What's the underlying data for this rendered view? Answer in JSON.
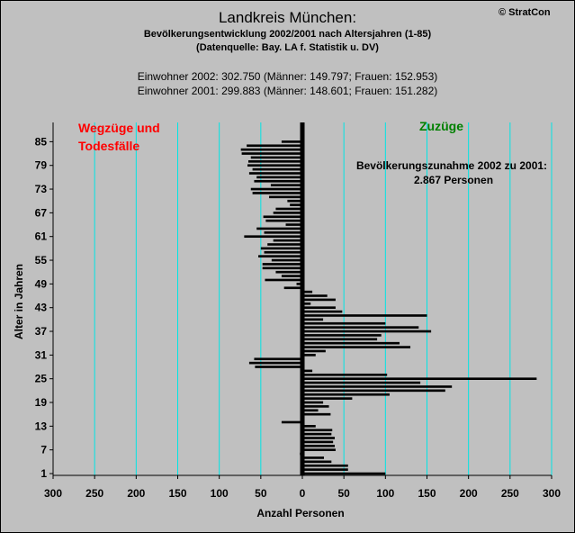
{
  "header": {
    "title": "Landkreis München:",
    "subtitle": "Bevölkerungsentwicklung 2002/2001  nach Altersjahren (1-85)",
    "source": "(Datenquelle: Bay. LA f. Statistik u. DV)",
    "population_2002": "Einwohner 2002: 302.750  (Männer: 149.797; Frauen: 152.953)",
    "population_2001": "Einwohner 2001: 299.883  (Männer: 148.601; Frauen: 151.282)",
    "brand": "© StratCon"
  },
  "colors": {
    "background": "#c0c0c0",
    "bars": "#000000",
    "gridlines": "#00e5e5",
    "left_annotation": "#ff0000",
    "right_annotation": "#008000"
  },
  "chart_data": {
    "type": "bar",
    "orientation": "horizontal",
    "xlabel": "Anzahl Personen",
    "ylabel": "Alter in Jahren",
    "xlim": [
      -300,
      300
    ],
    "ylim": [
      1,
      86
    ],
    "x_ticks": [
      -300,
      -250,
      -200,
      -150,
      -100,
      -50,
      0,
      50,
      100,
      150,
      200,
      250,
      300
    ],
    "x_tick_labels": [
      "300",
      "250",
      "200",
      "150",
      "100",
      "50",
      "0",
      "50",
      "100",
      "150",
      "200",
      "250",
      "300"
    ],
    "y_ticks": [
      1,
      7,
      13,
      19,
      25,
      31,
      37,
      43,
      49,
      55,
      61,
      67,
      73,
      79,
      85
    ],
    "grid": "vertical",
    "annotations": {
      "left": [
        "Wegzüge und",
        "Todesfälle"
      ],
      "right": "Zuzüge",
      "increase_label": "Bevölkerungszunahme 2002 zu 2001:",
      "increase_value": "2.867 Personen"
    },
    "series": [
      {
        "ages": [
          1,
          2,
          3,
          4,
          5,
          6,
          7,
          8,
          9,
          10,
          11,
          12,
          13,
          14,
          15,
          16,
          17,
          18,
          19,
          20,
          21,
          22,
          23,
          24,
          25,
          26,
          27,
          28,
          29,
          30,
          31,
          32,
          33,
          34,
          35,
          36,
          37,
          38,
          39,
          40,
          41,
          42,
          43,
          44,
          45,
          46,
          47,
          48,
          49,
          50,
          51,
          52,
          53,
          54,
          55,
          56,
          57,
          58,
          59,
          60,
          61,
          62,
          63,
          64,
          65,
          66,
          67,
          68,
          69,
          70,
          71,
          72,
          73,
          74,
          75,
          76,
          77,
          78,
          79,
          80,
          81,
          82,
          83,
          84,
          85
        ],
        "values": [
          100,
          55,
          55,
          35,
          26,
          -3,
          40,
          39,
          37,
          39,
          35,
          36,
          16,
          -25,
          2,
          34,
          19,
          32,
          25,
          60,
          105,
          172,
          180,
          142,
          282,
          102,
          12,
          -57,
          -64,
          -58,
          16,
          28,
          130,
          117,
          90,
          95,
          155,
          140,
          100,
          25,
          150,
          48,
          40,
          10,
          40,
          30,
          12,
          -22,
          -7,
          -45,
          -25,
          -32,
          -48,
          -48,
          -37,
          -53,
          -46,
          -50,
          -42,
          -35,
          -70,
          -46,
          -55,
          -20,
          -44,
          -47,
          -35,
          -32,
          -15,
          -18,
          -40,
          -60,
          -62,
          -38,
          -58,
          -55,
          -64,
          -60,
          -66,
          -65,
          -62,
          -73,
          -74,
          -67,
          -25
        ]
      }
    ]
  }
}
